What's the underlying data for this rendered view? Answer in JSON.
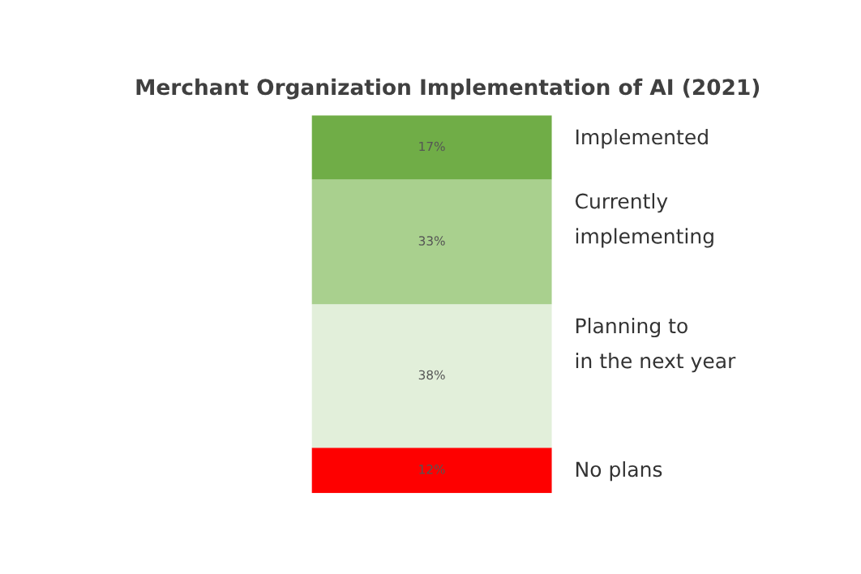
{
  "chart_data": {
    "type": "bar",
    "stacked": true,
    "title": "Merchant Organization Implementation of AI (2021)",
    "categories": [
      null
    ],
    "series": [
      {
        "name": "No plans",
        "color": "#fe0000",
        "values": [
          12
        ],
        "value_labels": [
          "12%"
        ]
      },
      {
        "name": "Planning to\nin the next year",
        "color": "#e2efda",
        "values": [
          38
        ],
        "value_labels": [
          "38%"
        ]
      },
      {
        "name": "Currently\nimplementing",
        "color": "#a9d08e",
        "values": [
          33
        ],
        "value_labels": [
          "33%"
        ]
      },
      {
        "name": "Implemented",
        "color": "#70ad47",
        "values": [
          17
        ],
        "value_labels": [
          "17%"
        ]
      }
    ],
    "tick_labels": false,
    "grid": false,
    "legend": false
  }
}
